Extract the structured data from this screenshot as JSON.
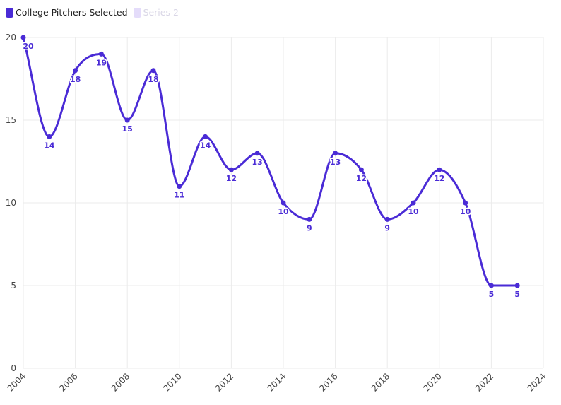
{
  "colors": {
    "series1": "#4A2BD6",
    "series2": "#E4DCFA",
    "series2_text": "#D9D6E6",
    "grid": "#EBEBEB",
    "axis_text": "#444444"
  },
  "legend": {
    "series1_label": "College Pitchers Selected",
    "series2_label": "Series 2"
  },
  "chart_data": {
    "type": "line",
    "smooth": true,
    "title": "",
    "xlabel": "",
    "ylabel": "",
    "xlim": [
      2004,
      2024
    ],
    "ylim": [
      0,
      20
    ],
    "x_ticks": [
      2004,
      2006,
      2008,
      2010,
      2012,
      2014,
      2016,
      2018,
      2020,
      2022,
      2024
    ],
    "y_ticks": [
      0,
      5,
      10,
      15,
      20
    ],
    "grid": true,
    "legend_position": "top-left",
    "series": [
      {
        "name": "College Pitchers Selected",
        "x": [
          2004,
          2005,
          2006,
          2007,
          2008,
          2009,
          2010,
          2011,
          2012,
          2013,
          2014,
          2015,
          2016,
          2017,
          2018,
          2019,
          2020,
          2021,
          2022,
          2023
        ],
        "values": [
          20,
          14,
          18,
          19,
          15,
          18,
          11,
          14,
          12,
          13,
          10,
          9,
          13,
          12,
          9,
          10,
          12,
          10,
          5,
          5
        ]
      },
      {
        "name": "Series 2",
        "x": [],
        "values": []
      }
    ]
  }
}
